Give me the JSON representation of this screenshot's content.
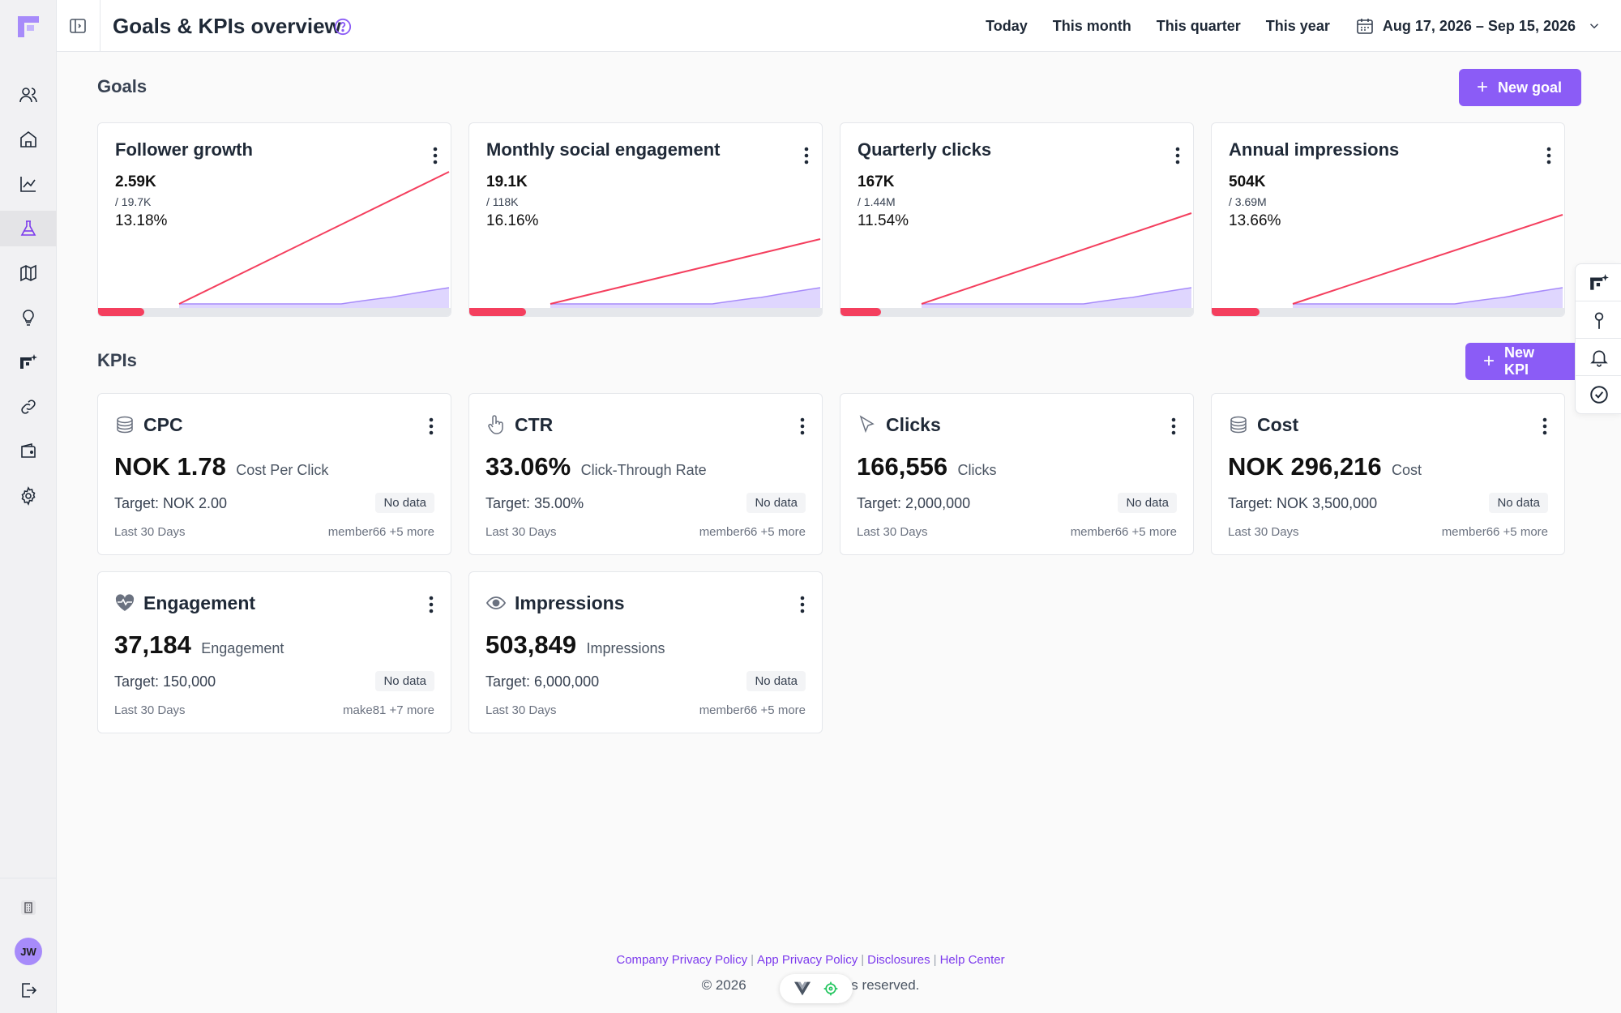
{
  "header": {
    "title": "Goals & KPIs overview",
    "ranges": [
      "Today",
      "This month",
      "This quarter",
      "This year"
    ],
    "date_range": "Aug 17, 2026 – Sep 15, 2026"
  },
  "goals_section": {
    "title": "Goals",
    "new_button": "New goal",
    "items": [
      {
        "title": "Follower growth",
        "value": "2.59K",
        "target": "/ 19.7K",
        "percent": "13.18%",
        "progress": 0.1318
      },
      {
        "title": "Monthly social engagement",
        "value": "19.1K",
        "target": "/ 118K",
        "percent": "16.16%",
        "progress": 0.1616
      },
      {
        "title": "Quarterly clicks",
        "value": "167K",
        "target": "/ 1.44M",
        "percent": "11.54%",
        "progress": 0.1154
      },
      {
        "title": "Annual impressions",
        "value": "504K",
        "target": "/ 3.69M",
        "percent": "13.66%",
        "progress": 0.1366
      }
    ]
  },
  "kpis_section": {
    "title": "KPIs",
    "new_button": "New KPI",
    "items": [
      {
        "icon": "coins-icon",
        "title": "CPC",
        "value": "NOK 1.78",
        "unit": "Cost Per Click",
        "target": "Target: NOK 2.00",
        "badge": "No data",
        "period": "Last 30 Days",
        "members": "member66 +5 more"
      },
      {
        "icon": "pointer-hand-icon",
        "title": "CTR",
        "value": "33.06%",
        "unit": "Click-Through Rate",
        "target": "Target: 35.00%",
        "badge": "No data",
        "period": "Last 30 Days",
        "members": "member66 +5 more"
      },
      {
        "icon": "cursor-arrow-icon",
        "title": "Clicks",
        "value": "166,556",
        "unit": "Clicks",
        "target": "Target: 2,000,000",
        "badge": "No data",
        "period": "Last 30 Days",
        "members": "member66 +5 more"
      },
      {
        "icon": "coins-icon",
        "title": "Cost",
        "value": "NOK 296,216",
        "unit": "Cost",
        "target": "Target: NOK 3,500,000",
        "badge": "No data",
        "period": "Last 30 Days",
        "members": "member66 +5 more"
      },
      {
        "icon": "heart-pulse-icon",
        "title": "Engagement",
        "value": "37,184",
        "unit": "Engagement",
        "target": "Target: 150,000",
        "badge": "No data",
        "period": "Last 30 Days",
        "members": "make81 +7 more"
      },
      {
        "icon": "eye-icon",
        "title": "Impressions",
        "value": "503,849",
        "unit": "Impressions",
        "target": "Target: 6,000,000",
        "badge": "No data",
        "period": "Last 30 Days",
        "members": "member66 +5 more"
      }
    ]
  },
  "user": {
    "initials": "JW"
  },
  "footer": {
    "links": [
      "Company Privacy Policy",
      "App Privacy Policy",
      "Disclosures",
      "Help Center"
    ],
    "copyright": "© 2026",
    "copyright_tail": "ghts reserved."
  },
  "colors": {
    "accent": "#8b5cf6",
    "progress": "#f43f5e",
    "target_line": "#f43f5e",
    "actual_area": "#c4b5fd"
  }
}
